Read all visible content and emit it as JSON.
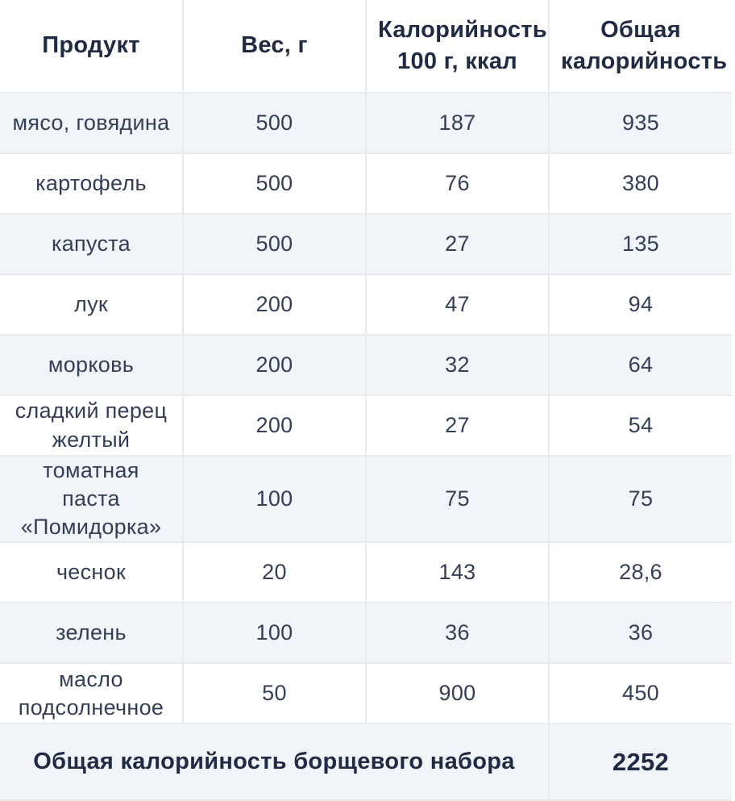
{
  "table": {
    "columns": [
      {
        "label": "Продукт"
      },
      {
        "label": "Вес, г"
      },
      {
        "label": "Калорийность\n100 г, ккал"
      },
      {
        "label": "Общая\nкалорийность"
      }
    ],
    "rows": [
      {
        "product": "мясо, говядина",
        "weight": "500",
        "kcal_per_100": "187",
        "total_kcal": "935"
      },
      {
        "product": "картофель",
        "weight": "500",
        "kcal_per_100": "76",
        "total_kcal": "380"
      },
      {
        "product": "капуста",
        "weight": "500",
        "kcal_per_100": "27",
        "total_kcal": "135"
      },
      {
        "product": "лук",
        "weight": "200",
        "kcal_per_100": "47",
        "total_kcal": "94"
      },
      {
        "product": "морковь",
        "weight": "200",
        "kcal_per_100": "32",
        "total_kcal": "64"
      },
      {
        "product": "сладкий перец\nжелтый",
        "weight": "200",
        "kcal_per_100": "27",
        "total_kcal": "54"
      },
      {
        "product": "томатная паста\n«Помидорка»",
        "weight": "100",
        "kcal_per_100": "75",
        "total_kcal": "75"
      },
      {
        "product": "чеснок",
        "weight": "20",
        "kcal_per_100": "143",
        "total_kcal": "28,6"
      },
      {
        "product": "зелень",
        "weight": "100",
        "kcal_per_100": "36",
        "total_kcal": "36"
      },
      {
        "product": "масло\nподсолнечное",
        "weight": "50",
        "kcal_per_100": "900",
        "total_kcal": "450"
      }
    ],
    "footer": {
      "label": "Общая калорийность борщевого набора",
      "total": "2252"
    },
    "colors": {
      "row_shade": "#F1F4F8",
      "border": "#E9EAEC",
      "header_text": "#1F2A44",
      "body_text": "#333F58"
    }
  }
}
